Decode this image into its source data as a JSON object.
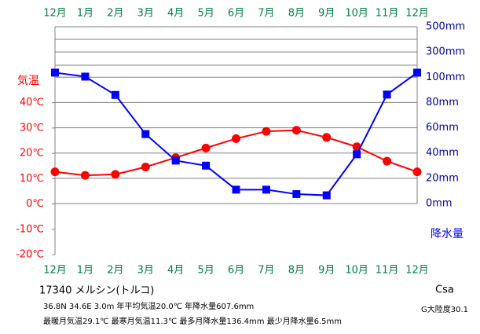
{
  "chart_data": {
    "type": "climate",
    "categories": [
      "12月",
      "1月",
      "2月",
      "3月",
      "4月",
      "5月",
      "6月",
      "7月",
      "8月",
      "9月",
      "10月",
      "11月",
      "12月"
    ],
    "series": [
      {
        "name": "気温",
        "color": "#ff0000",
        "axis": "y",
        "marker": "circle",
        "values": [
          12.7,
          11.3,
          11.7,
          14.6,
          18.3,
          22.1,
          25.8,
          28.7,
          29.1,
          26.3,
          22.6,
          16.9,
          12.7
        ]
      },
      {
        "name": "降水量",
        "color": "#0000ff",
        "axis": "y2",
        "marker": "square",
        "values": [
          136.4,
          105,
          86,
          55,
          34,
          30,
          11,
          11,
          7.5,
          6.5,
          39,
          86.3,
          136.4
        ]
      }
    ],
    "ylim": [
      -20,
      70
    ],
    "yticks": [
      {
        "value": -20,
        "label": "-20℃"
      },
      {
        "value": -10,
        "label": "-10℃"
      },
      {
        "value": 0,
        "label": "0℃"
      },
      {
        "value": 10,
        "label": "10℃"
      },
      {
        "value": 20,
        "label": "20℃"
      },
      {
        "value": 30,
        "label": "30℃"
      },
      {
        "value": 40,
        "label": "40℃"
      }
    ],
    "y2lim": [
      0,
      500
    ],
    "y2ticks": [
      {
        "value": 0,
        "label": "0mm"
      },
      {
        "value": 20,
        "label": "20mm"
      },
      {
        "value": 40,
        "label": "40mm"
      },
      {
        "value": 60,
        "label": "60mm"
      },
      {
        "value": 80,
        "label": "80mm"
      },
      {
        "value": 100,
        "label": "100mm"
      },
      {
        "value": 300,
        "label": "300mm"
      },
      {
        "value": 500,
        "label": "500mm"
      }
    ],
    "station": "17340  メルシン(トルコ)",
    "info_lines": [
      "36.8N  34.6E  3.0m  年平均気温20.0℃  年降水量607.6mm",
      "最暖月気温29.1℃  最寒月気温11.3℃  最多月降水量136.4mm  最少月降水量6.5mm"
    ],
    "climate_class": "Csa",
    "continentality": "G大陸度30.1"
  }
}
